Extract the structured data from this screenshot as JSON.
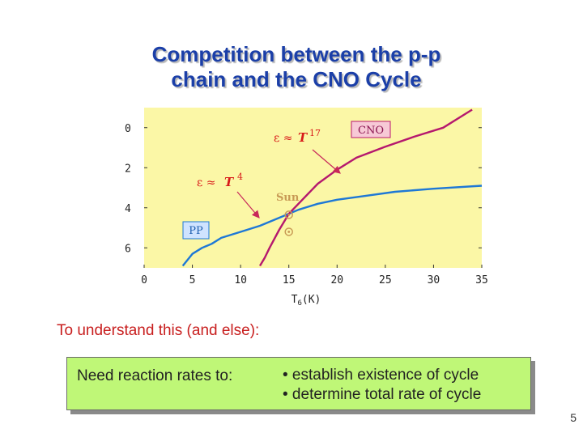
{
  "slide": {
    "title_line1": "Competition between the p-p",
    "title_line2": "chain and the CNO Cycle",
    "subtitle": "To understand this (and else):",
    "page_number": "5"
  },
  "box": {
    "left": "Need reaction rates to:",
    "bullets": [
      "• establish existence of cycle",
      "• determine total rate of cycle"
    ]
  },
  "chart_data": {
    "type": "line",
    "xlabel": "T6 (K)",
    "ylabel": "",
    "xlim": [
      0,
      35
    ],
    "ylim": [
      7,
      -1
    ],
    "x_ticks": [
      0,
      5,
      10,
      15,
      20,
      25,
      30,
      35
    ],
    "y_ticks": [
      0,
      2,
      4,
      6
    ],
    "grid": false,
    "colors": {
      "background": "#fbf7a6",
      "pp": "#1e78d6",
      "cno": "#b5186e",
      "arrow": "#c8285a",
      "annotation": "#d81a1a",
      "sun": "#c89a55"
    },
    "series": [
      {
        "name": "PP",
        "x": [
          4.0,
          5.0,
          6.0,
          7.0,
          8.0,
          10.0,
          12.0,
          14.0,
          16.0,
          18.0,
          20.0,
          23.0,
          26.0,
          30.0,
          35.0
        ],
        "y": [
          6.9,
          6.3,
          6.0,
          5.8,
          5.5,
          5.2,
          4.9,
          4.5,
          4.1,
          3.8,
          3.6,
          3.4,
          3.2,
          3.05,
          2.9
        ]
      },
      {
        "name": "CNO",
        "x": [
          12.0,
          12.5,
          13.0,
          14.0,
          15.0,
          16.0,
          18.0,
          20.0,
          22.0,
          25.0,
          28.0,
          31.0,
          34.0
        ],
        "y": [
          6.9,
          6.5,
          6.0,
          5.1,
          4.3,
          3.8,
          2.8,
          2.1,
          1.5,
          0.95,
          0.45,
          0.0,
          -0.9
        ]
      }
    ],
    "annotations": {
      "cno_formula_prefix": "ε ≈",
      "cno_formula_T": "T",
      "cno_formula_exp": "17",
      "pp_formula_prefix": "ε ≈",
      "pp_formula_T": "T",
      "pp_formula_exp": "4",
      "cno_label": "CNO",
      "pp_label": "PP",
      "sun_label": "Sun"
    },
    "sun_points": [
      {
        "x": 15.0,
        "y": 4.35
      },
      {
        "x": 15.0,
        "y": 5.2
      }
    ]
  }
}
